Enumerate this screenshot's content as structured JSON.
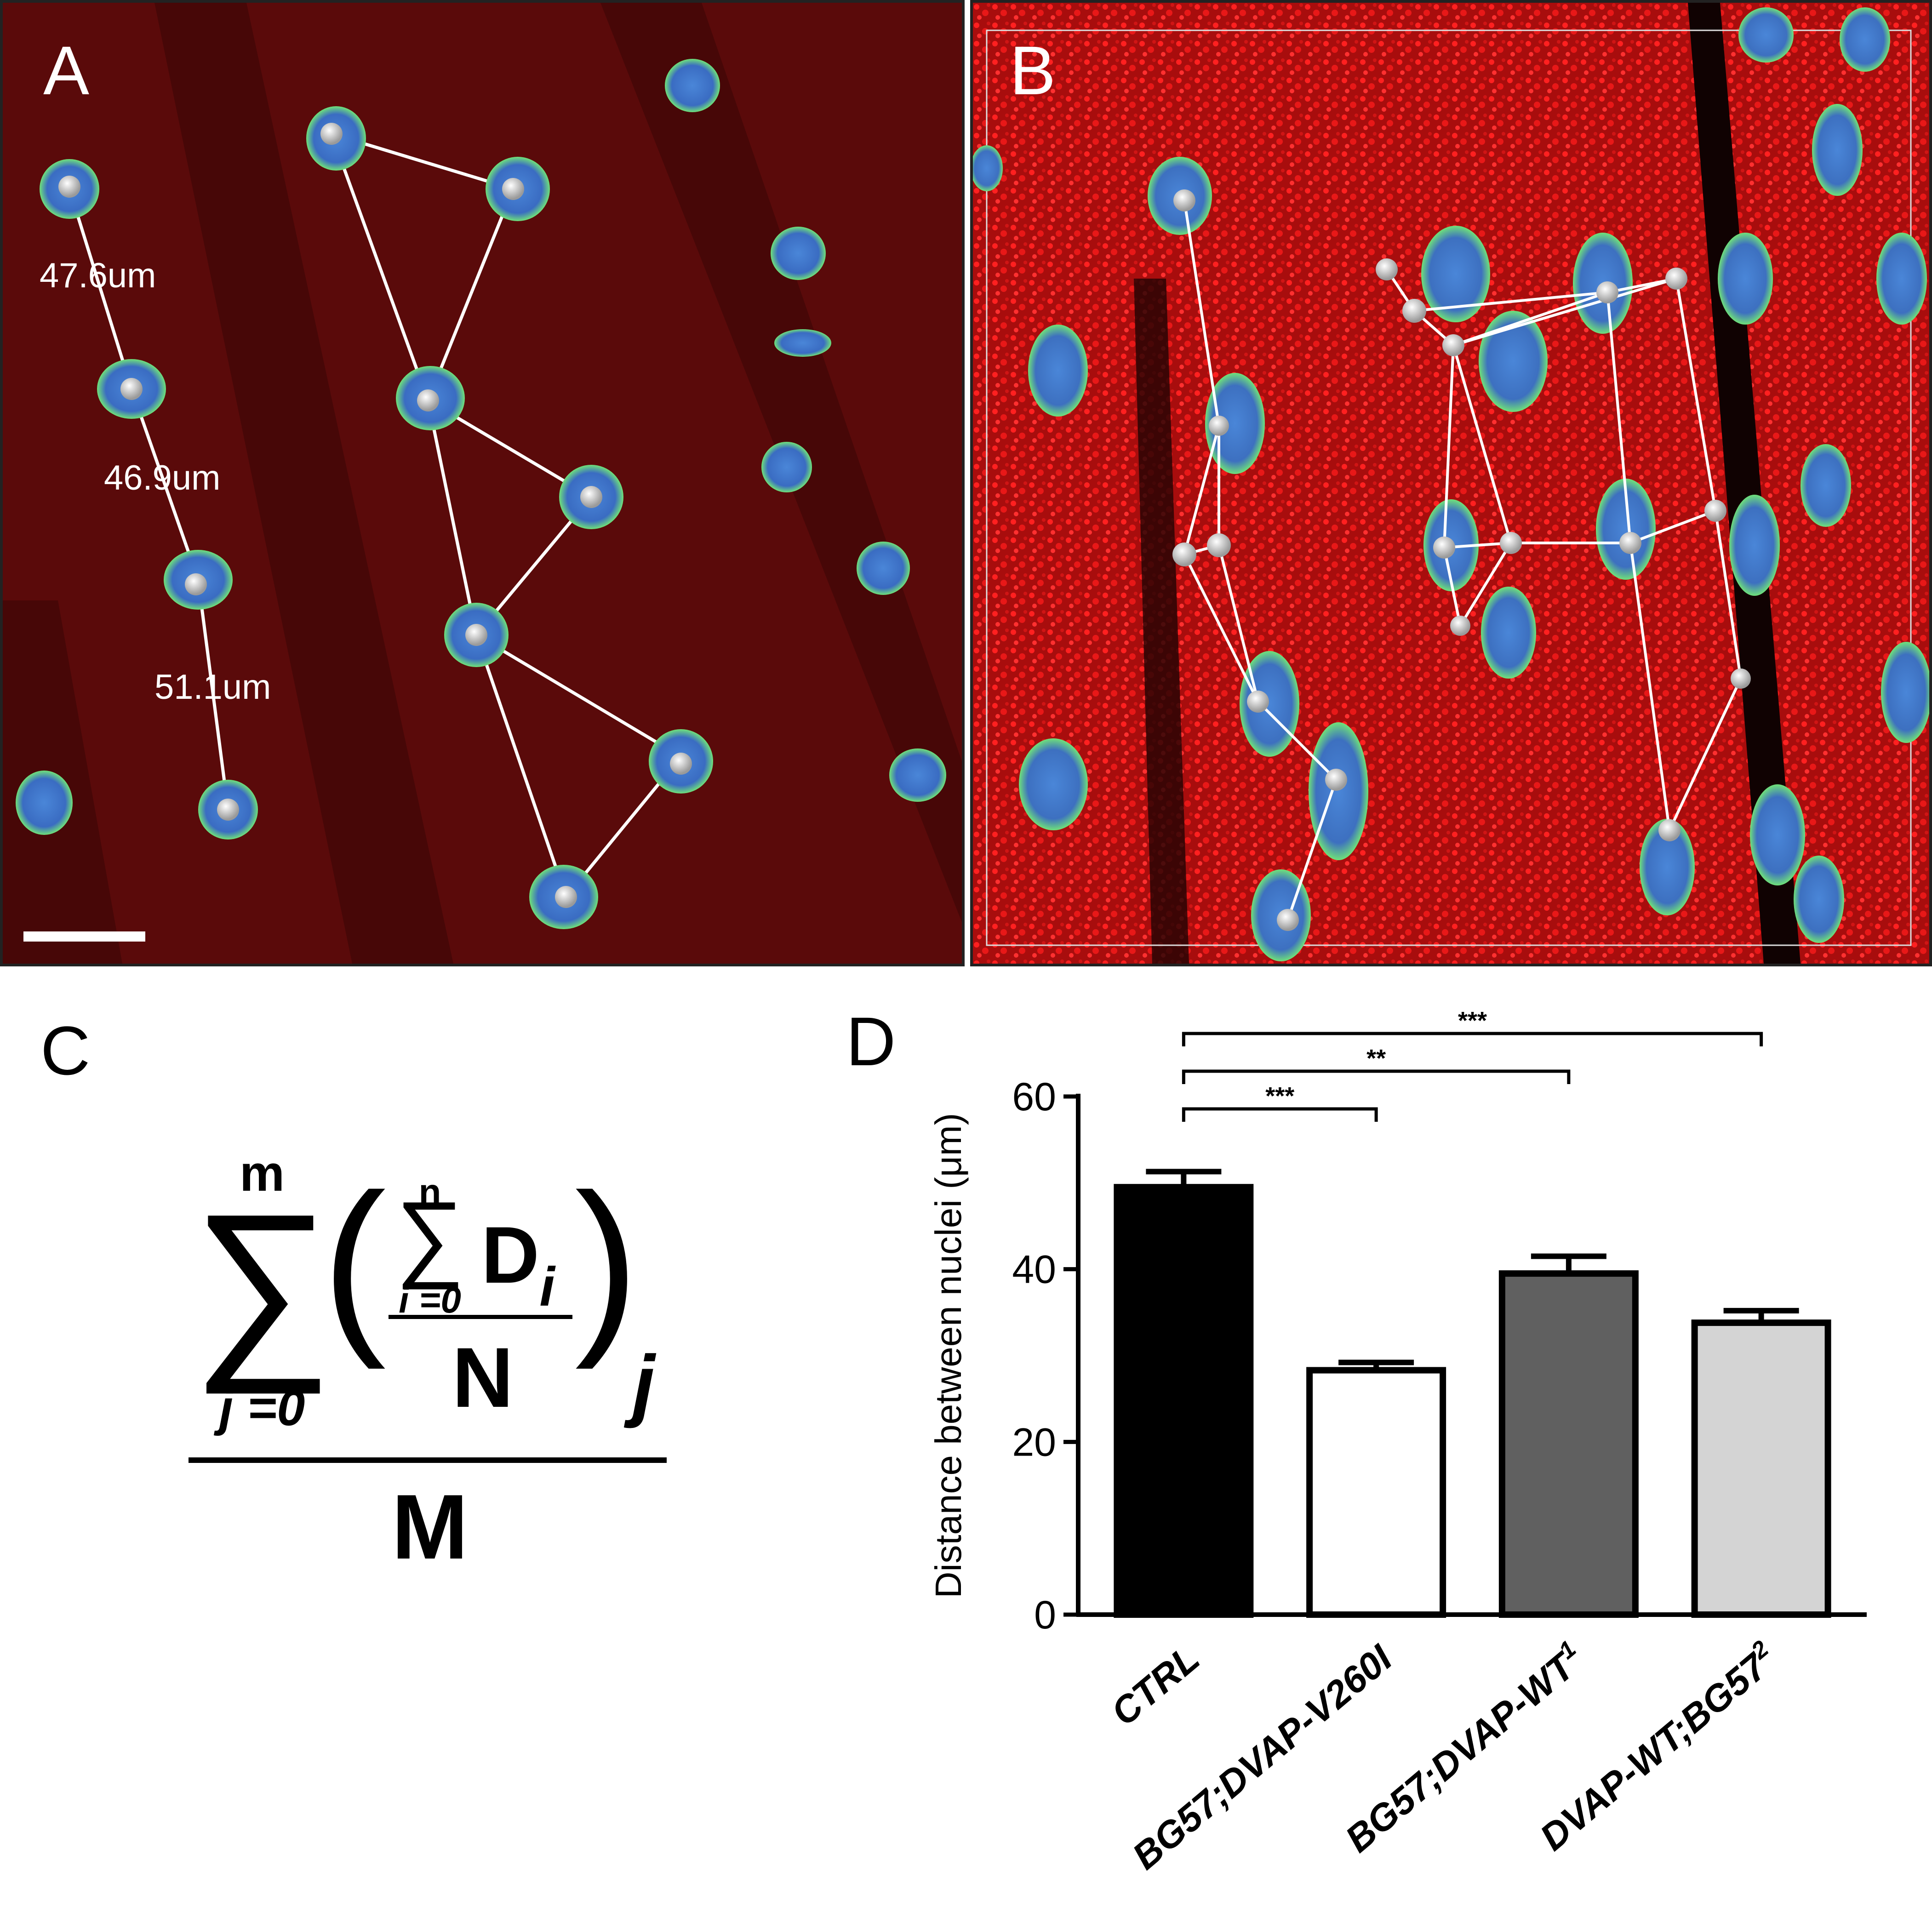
{
  "panels": {
    "a": {
      "label": "A",
      "measurements": [
        "47.6um",
        "46.9um",
        "51.1um"
      ]
    },
    "b": {
      "label": "B"
    },
    "c": {
      "label": "C",
      "formula": {
        "outer_upper": "m",
        "outer_lower": "j =0",
        "inner_upper": "n",
        "inner_lower": "i =0",
        "summand": "D",
        "summand_sub": "i",
        "inner_denominator": "N",
        "outer_sub": "j",
        "denominator": "M"
      }
    },
    "d": {
      "label": "D"
    }
  },
  "colors": {
    "micro_background_a": "#5a0a0a",
    "micro_background_b": "#b80f0f",
    "nucleus_fill": "#3f78cc",
    "nucleus_rim": "#6fe07a",
    "track_line": "#ffffff",
    "bar_fills": [
      "#000000",
      "#ffffff",
      "#606060",
      "#d4d4d4"
    ]
  },
  "chart_data": {
    "type": "bar",
    "ylabel": "Distance between nuclei (μm)",
    "ylim": [
      0,
      60
    ],
    "yticks": [
      "0",
      "20",
      "40",
      "60"
    ],
    "categories": [
      "CTRL",
      "BG57;DVAP-V260I",
      "BG57;DVAP-WT",
      "DVAP-WT;BG57"
    ],
    "category_superscripts": [
      "",
      "",
      "1",
      "2"
    ],
    "values": [
      49.5,
      28.3,
      39.5,
      33.8
    ],
    "errors": [
      1.8,
      0.9,
      2.0,
      1.4
    ],
    "significance": [
      {
        "from": 0,
        "to": 1,
        "label": "***"
      },
      {
        "from": 0,
        "to": 2,
        "label": "**"
      },
      {
        "from": 0,
        "to": 3,
        "label": "***"
      }
    ]
  }
}
